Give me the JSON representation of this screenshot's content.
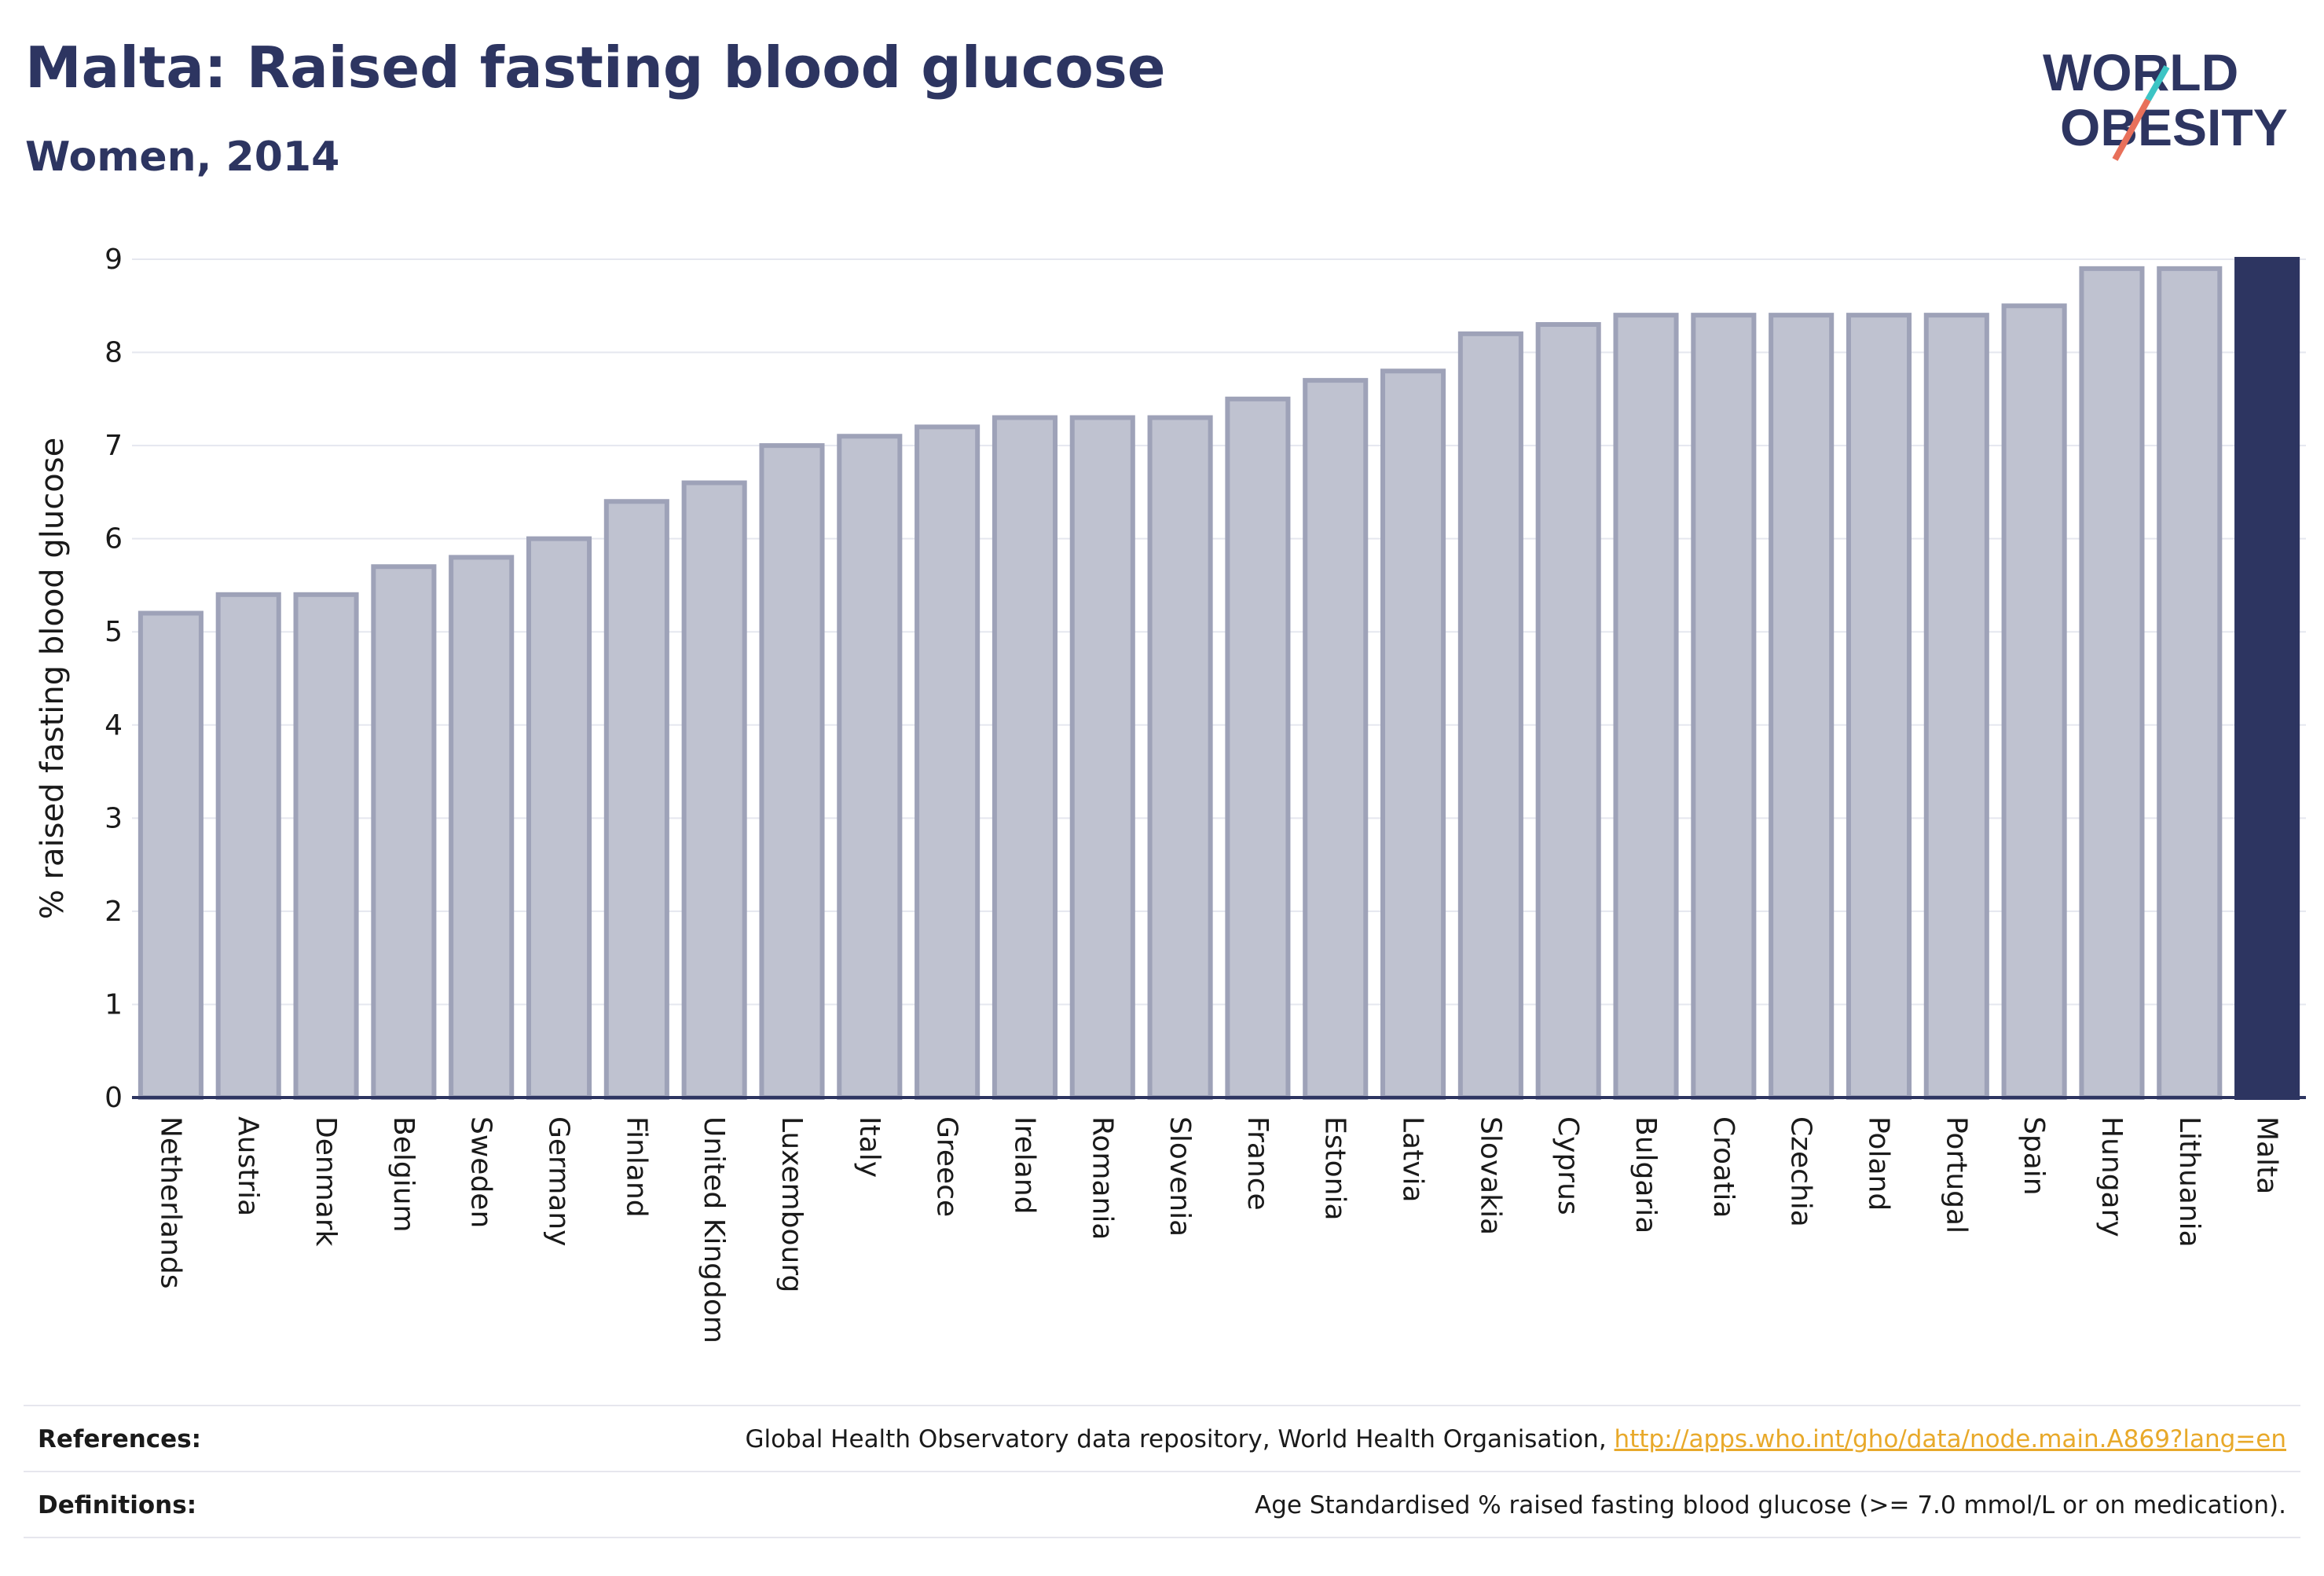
{
  "header": {
    "title": "Malta: Raised fasting blood glucose",
    "subtitle": "Women, 2014"
  },
  "logo": {
    "line1": "WORLD",
    "line2": "OBESITY"
  },
  "colors": {
    "bar_fill": "#bfc2d0",
    "bar_stroke": "#9ea2b8",
    "highlight": "#2d3561",
    "axis": "#2d3561",
    "grid": "#e5e7ef",
    "text": "#1a1a1a",
    "link": "#e8a92a"
  },
  "chart_data": {
    "type": "bar",
    "ylabel": "% raised fasting blood glucose",
    "xlabel": "",
    "ylim": [
      0,
      9
    ],
    "yticks": [
      "0",
      "1",
      "2",
      "3",
      "4",
      "5",
      "6",
      "7",
      "8",
      "9"
    ],
    "grid": true,
    "categories": [
      "Netherlands",
      "Austria",
      "Denmark",
      "Belgium",
      "Sweden",
      "Germany",
      "Finland",
      "United Kingdom",
      "Luxembourg",
      "Italy",
      "Greece",
      "Ireland",
      "Romania",
      "Slovenia",
      "France",
      "Estonia",
      "Latvia",
      "Slovakia",
      "Cyprus",
      "Bulgaria",
      "Croatia",
      "Czechia",
      "Poland",
      "Portugal",
      "Spain",
      "Hungary",
      "Lithuania",
      "Malta"
    ],
    "values": [
      5.2,
      5.4,
      5.4,
      5.7,
      5.8,
      6.0,
      6.4,
      6.6,
      7.0,
      7.1,
      7.2,
      7.3,
      7.3,
      7.3,
      7.5,
      7.7,
      7.8,
      8.2,
      8.3,
      8.4,
      8.4,
      8.4,
      8.4,
      8.4,
      8.5,
      8.9,
      8.9,
      9.0
    ],
    "highlight": "Malta"
  },
  "footer": {
    "references_label": "References:",
    "references_text": "Global Health Observatory data repository, World Health Organisation, ",
    "references_link": "http://apps.who.int/gho/data/node.main.A869?lang=en",
    "definitions_label": "Definitions:",
    "definitions_text": "Age Standardised % raised fasting blood glucose (>= 7.0 mmol/L or on medication)."
  }
}
